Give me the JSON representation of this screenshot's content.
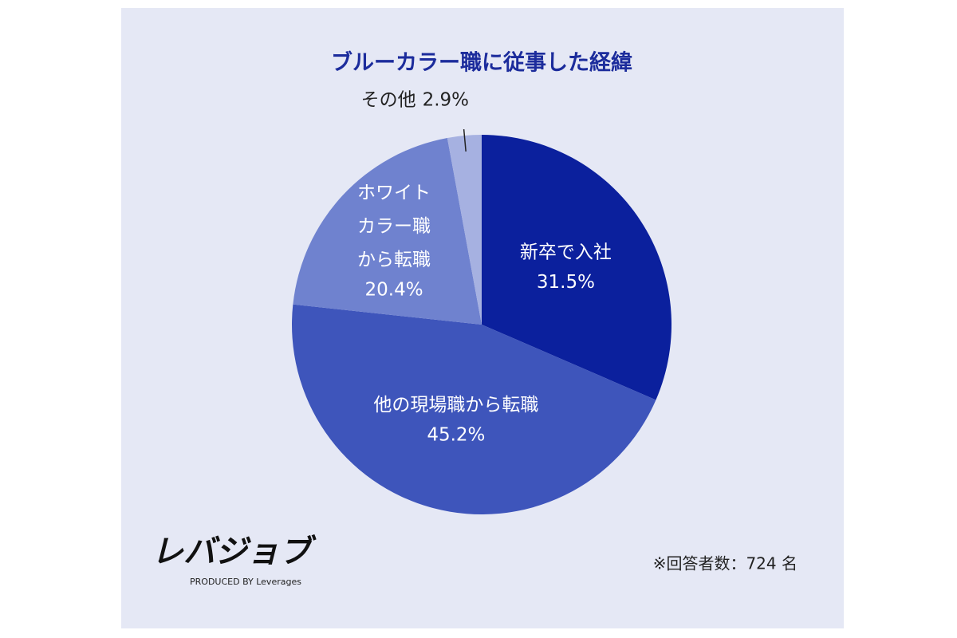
{
  "chart_data": {
    "type": "pie",
    "title": "ブルーカラー職に従事した経緯",
    "categories": [
      "新卒で入社",
      "他の現場職から転職",
      "ホワイト\nカラー職\nから転職",
      "その他"
    ],
    "values": [
      31.5,
      45.2,
      20.4,
      2.9
    ],
    "value_labels": [
      "31.5%",
      "45.2%",
      "20.4%",
      "2.9%"
    ],
    "colors": [
      "#0b209d",
      "#3e55bb",
      "#6f82cf",
      "#a6b1e1"
    ],
    "logo": "レバジョブ",
    "logo_sub": "PRODUCED BY Leverages",
    "note": "※回答者数：724 名"
  }
}
